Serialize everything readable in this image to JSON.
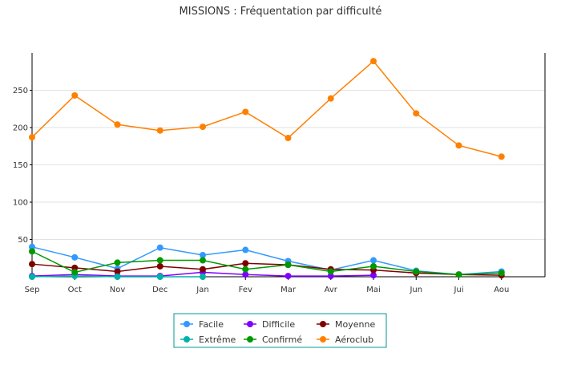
{
  "chart_data": {
    "type": "line",
    "title": "MISSIONS : Fréquentation par difficulté",
    "xlabel": "",
    "ylabel": "",
    "categories": [
      "Sep",
      "Oct",
      "Nov",
      "Dec",
      "Jan",
      "Fev",
      "Mar",
      "Avr",
      "Mai",
      "Jun",
      "Jui",
      "Aou"
    ],
    "ylim": [
      0,
      300
    ],
    "yticks": [
      50,
      100,
      150,
      200,
      250
    ],
    "grid": true,
    "legend_position": "bottom",
    "series": [
      {
        "name": "Facile",
        "color": "#3399ff",
        "values": [
          40,
          26,
          11,
          39,
          29,
          36,
          21,
          9,
          22,
          8,
          3,
          7
        ]
      },
      {
        "name": "Difficile",
        "color": "#7f00ff",
        "values": [
          1,
          3,
          1,
          1,
          6,
          3,
          1,
          1,
          2,
          null,
          null,
          null
        ]
      },
      {
        "name": "Moyenne",
        "color": "#800000",
        "values": [
          17,
          12,
          7,
          14,
          10,
          18,
          16,
          10,
          9,
          5,
          3,
          2
        ]
      },
      {
        "name": "Extrême",
        "color": "#00b2a9",
        "values": [
          0,
          1,
          0,
          0,
          0,
          null,
          null,
          null,
          null,
          null,
          null,
          null
        ]
      },
      {
        "name": "Confirmé",
        "color": "#009900",
        "values": [
          34,
          6,
          19,
          22,
          22,
          10,
          16,
          7,
          14,
          7,
          3,
          5
        ]
      },
      {
        "name": "Aéroclub",
        "color": "#ff8000",
        "values": [
          187,
          243,
          204,
          196,
          201,
          221,
          186,
          239,
          289,
          219,
          176,
          161
        ]
      }
    ]
  }
}
